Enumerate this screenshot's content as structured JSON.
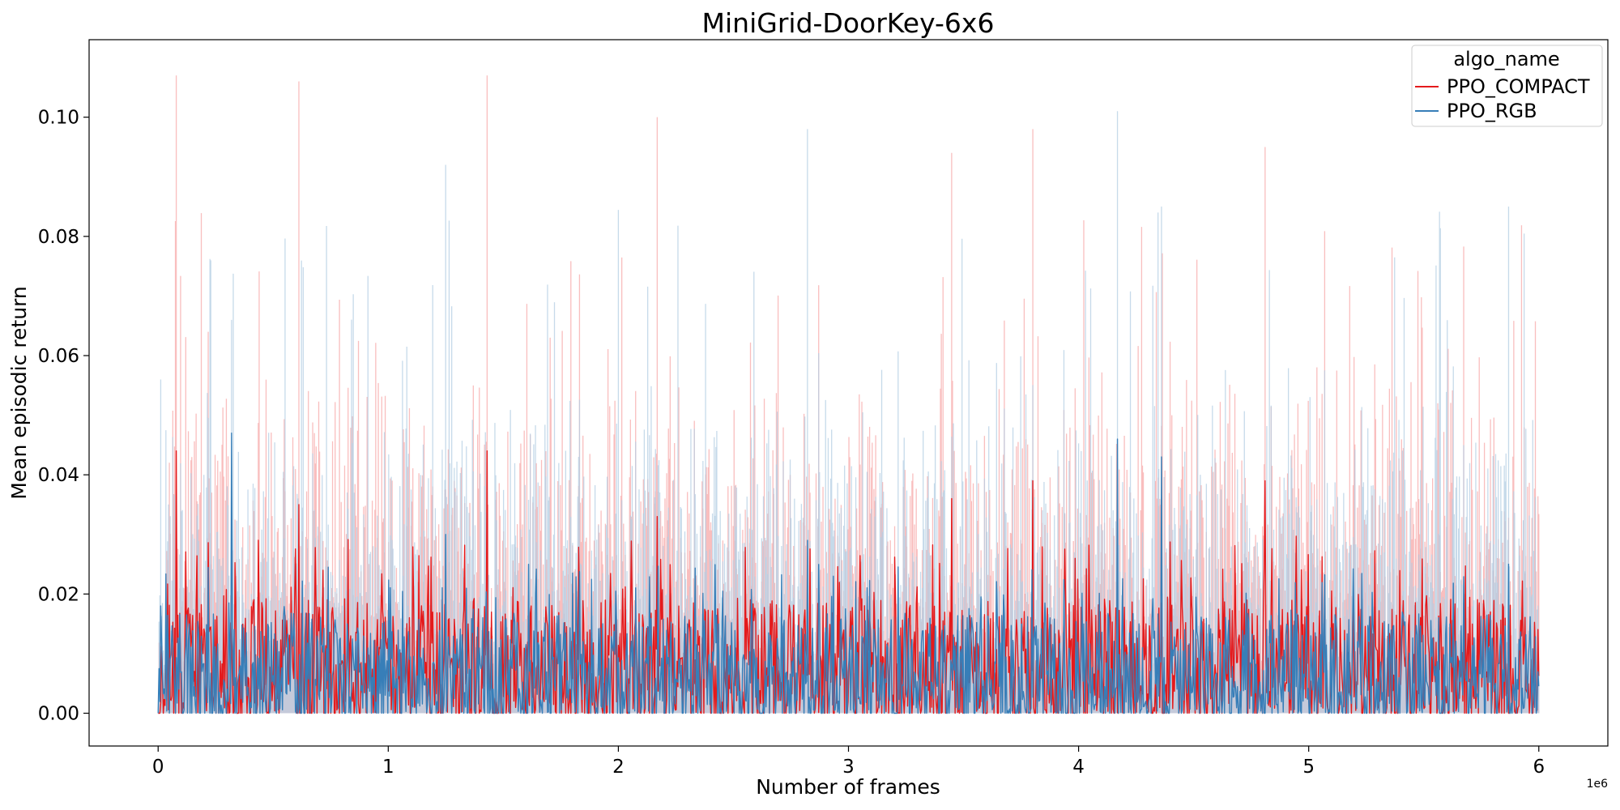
{
  "chart_data": {
    "type": "line",
    "title": "MiniGrid-DoorKey-6x6",
    "xlabel": "Number of frames",
    "ylabel": "Mean episodic return",
    "x_scale_note": "1e6",
    "xlim": [
      -0.3,
      6.3
    ],
    "ylim": [
      -0.0055,
      0.113
    ],
    "x_ticks": [
      0,
      1,
      2,
      3,
      4,
      5,
      6
    ],
    "x_tick_labels": [
      "0",
      "1",
      "2",
      "3",
      "4",
      "5",
      "6"
    ],
    "y_ticks": [
      0.0,
      0.02,
      0.04,
      0.06,
      0.08,
      0.1
    ],
    "y_tick_labels": [
      "0.00",
      "0.02",
      "0.04",
      "0.06",
      "0.08",
      "0.10"
    ],
    "grid": false,
    "legend": {
      "title": "algo_name",
      "placement": "top-right",
      "entries": [
        "PPO_COMPACT",
        "PPO_RGB"
      ]
    },
    "series": [
      {
        "name": "PPO_COMPACT",
        "color": "#e41a1c",
        "band_color": "#f7a8a8",
        "x_range": [
          0,
          6
        ],
        "mean_level": 0.008,
        "typical_mean_peak": 0.03,
        "notable_peaks": [
          {
            "x": 0.08,
            "mean": 0.044,
            "upper": 0.107
          },
          {
            "x": 0.61,
            "mean": 0.035,
            "upper": 0.106
          },
          {
            "x": 1.43,
            "mean": 0.044,
            "upper": 0.107
          },
          {
            "x": 2.17,
            "mean": 0.033,
            "upper": 0.1
          },
          {
            "x": 3.45,
            "mean": 0.036,
            "upper": 0.094
          },
          {
            "x": 3.8,
            "mean": 0.039,
            "upper": 0.098
          },
          {
            "x": 4.81,
            "mean": 0.039,
            "upper": 0.095
          }
        ]
      },
      {
        "name": "PPO_RGB",
        "color": "#377eb8",
        "band_color": "#b3cde3",
        "x_range": [
          0,
          6
        ],
        "mean_level": 0.007,
        "typical_mean_peak": 0.025,
        "notable_peaks": [
          {
            "x": 0.01,
            "mean": 0.018,
            "upper": 0.056
          },
          {
            "x": 0.32,
            "mean": 0.047,
            "upper": 0.066
          },
          {
            "x": 1.25,
            "mean": 0.03,
            "upper": 0.092
          },
          {
            "x": 2.82,
            "mean": 0.029,
            "upper": 0.098
          },
          {
            "x": 4.17,
            "mean": 0.046,
            "upper": 0.101
          },
          {
            "x": 4.36,
            "mean": 0.043,
            "upper": 0.085
          },
          {
            "x": 5.87,
            "mean": 0.025,
            "upper": 0.085
          }
        ]
      }
    ]
  }
}
